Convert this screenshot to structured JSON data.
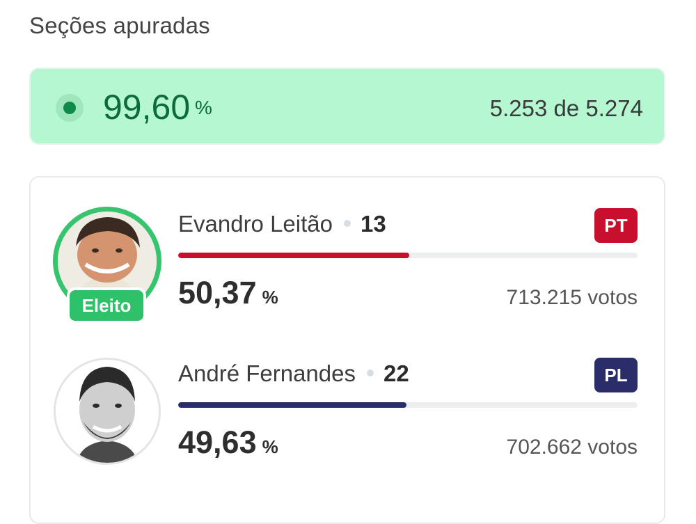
{
  "header": {
    "title": "Seções apuradas"
  },
  "progress": {
    "percent": "99,60",
    "unit": "%",
    "counted_text": "5.253 de 5.274",
    "status_color": "#0f8a4a",
    "background_color": "#b4f7d0"
  },
  "candidates": [
    {
      "name": "Evandro Leitão",
      "number": "13",
      "party": "PT",
      "party_color": "#c8102e",
      "percent": "50,37",
      "percent_unit": "%",
      "share": 50.37,
      "votes": "713.215 votos",
      "badge": "Eleito",
      "avatar_icon": "candidate-photo"
    },
    {
      "name": "André Fernandes",
      "number": "22",
      "party": "PL",
      "party_color": "#2b2d6b",
      "percent": "49,63",
      "percent_unit": "%",
      "share": 49.63,
      "votes": "702.662 votos",
      "avatar_icon": "candidate-photo"
    }
  ]
}
